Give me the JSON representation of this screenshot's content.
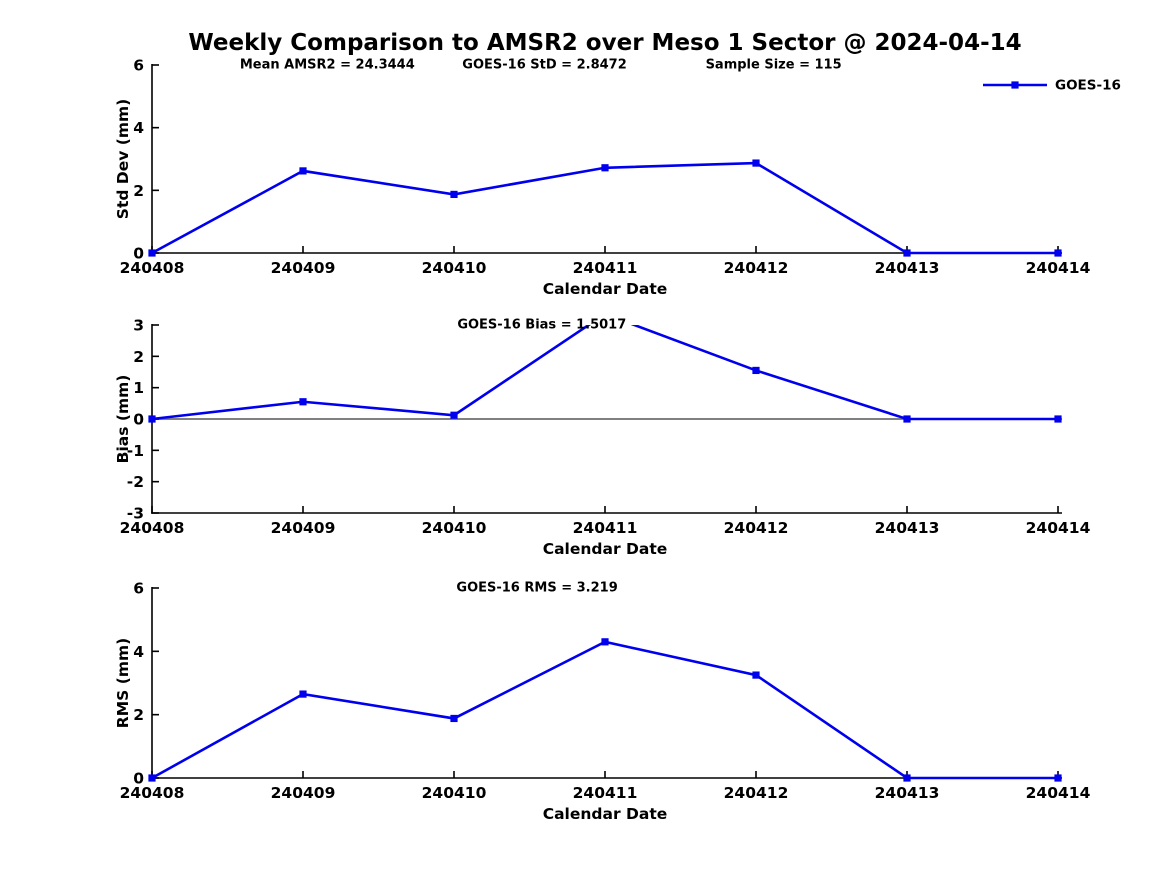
{
  "figure_title": "Weekly Comparison to AMSR2 over Meso 1 Sector @ 2024-04-14",
  "colors": {
    "line": "#0000EE",
    "zero_line": "#808080",
    "axis": "#000000",
    "text": "#000000",
    "background": "#FFFFFF"
  },
  "chart_data": [
    {
      "type": "line",
      "ylabel": "Std Dev (mm)",
      "xlabel": "Calendar Date",
      "categories": [
        "240408",
        "240409",
        "240410",
        "240411",
        "240412",
        "240413",
        "240414"
      ],
      "series": [
        {
          "name": "GOES-16",
          "values": [
            0,
            2.62,
            1.87,
            2.72,
            2.87,
            0,
            0
          ]
        }
      ],
      "ylim": [
        0,
        6
      ],
      "yticks": [
        0,
        2,
        4,
        6
      ],
      "grid": false,
      "legend": {
        "position": "upper right",
        "entries": [
          "GOES-16"
        ]
      },
      "annotations": [
        "Mean AMSR2 = 24.3444",
        "GOES-16 StD = 2.8472",
        "Sample Size = 115"
      ]
    },
    {
      "type": "line",
      "ylabel": "Bias (mm)",
      "xlabel": "Calendar Date",
      "categories": [
        "240408",
        "240409",
        "240410",
        "240411",
        "240412",
        "240413",
        "240414"
      ],
      "series": [
        {
          "name": "GOES-16",
          "values": [
            0,
            0.55,
            0.12,
            3.35,
            1.55,
            0,
            0
          ]
        }
      ],
      "ylim": [
        -3,
        3
      ],
      "yticks": [
        -3,
        -2,
        -1,
        0,
        1,
        2,
        3
      ],
      "grid": false,
      "zero_line": true,
      "annotations": [
        "GOES-16 Bias  = 1.5017"
      ]
    },
    {
      "type": "line",
      "ylabel": "RMS (mm)",
      "xlabel": "Calendar Date",
      "categories": [
        "240408",
        "240409",
        "240410",
        "240411",
        "240412",
        "240413",
        "240414"
      ],
      "series": [
        {
          "name": "GOES-16",
          "values": [
            0,
            2.65,
            1.88,
            4.3,
            3.25,
            0,
            0
          ]
        }
      ],
      "ylim": [
        0,
        6
      ],
      "yticks": [
        0,
        2,
        4,
        6
      ],
      "grid": false,
      "annotations": [
        "GOES-16 RMS = 3.219"
      ]
    }
  ]
}
